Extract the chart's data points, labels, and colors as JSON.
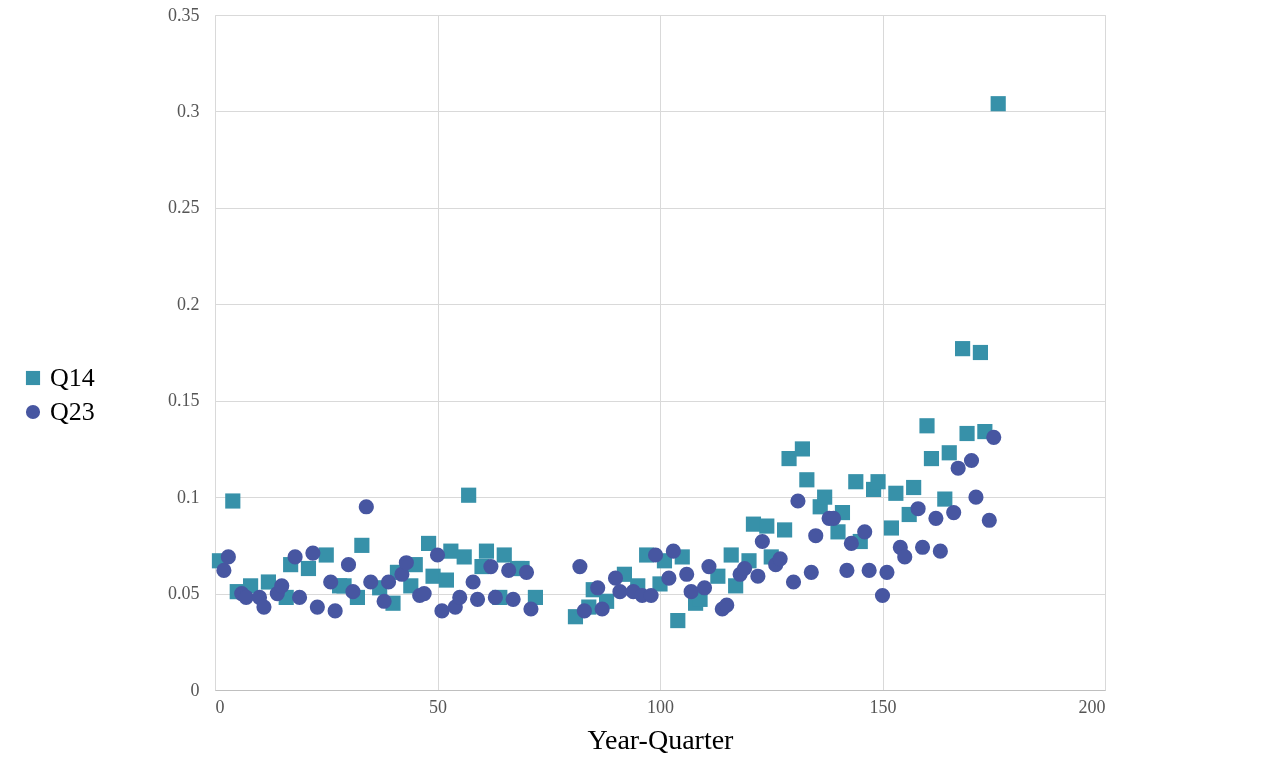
{
  "chart_data": {
    "type": "scatter",
    "xlabel": "Year-Quarter",
    "xlim": [
      0,
      200
    ],
    "xticks": [
      0,
      50,
      100,
      150,
      200
    ],
    "ylim": [
      0,
      0.35
    ],
    "yticks": [
      0,
      0.05,
      0.1,
      0.15,
      0.2,
      0.25,
      0.3,
      0.35
    ],
    "grid": true,
    "legend": "left",
    "series": [
      {
        "name": "Q14",
        "color": "#3791a9",
        "marker": "square",
        "x": [
          1,
          4,
          5,
          8,
          12,
          16,
          17,
          21,
          25,
          28,
          29,
          32,
          33,
          37,
          40,
          41,
          44,
          45,
          48,
          49,
          52,
          53,
          56,
          57,
          60,
          61,
          64,
          65,
          68,
          69,
          72,
          81,
          84,
          85,
          88,
          92,
          95,
          97,
          100,
          101,
          104,
          105,
          108,
          109,
          113,
          116,
          117,
          120,
          121,
          124,
          125,
          128,
          129,
          132,
          133,
          136,
          137,
          140,
          141,
          144,
          145,
          148,
          149,
          152,
          153,
          156,
          157,
          160,
          161,
          164,
          165,
          168,
          169,
          172,
          173,
          176
        ],
        "values": [
          0.067,
          0.098,
          0.051,
          0.054,
          0.056,
          0.048,
          0.065,
          0.063,
          0.07,
          0.054,
          0.054,
          0.048,
          0.075,
          0.053,
          0.045,
          0.061,
          0.054,
          0.065,
          0.076,
          0.059,
          0.057,
          0.072,
          0.069,
          0.101,
          0.064,
          0.072,
          0.048,
          0.07,
          0.063,
          0.063,
          0.048,
          0.038,
          0.043,
          0.052,
          0.046,
          0.06,
          0.054,
          0.07,
          0.055,
          0.067,
          0.036,
          0.069,
          0.045,
          0.047,
          0.059,
          0.07,
          0.054,
          0.067,
          0.086,
          0.085,
          0.069,
          0.083,
          0.12,
          0.125,
          0.109,
          0.095,
          0.1,
          0.082,
          0.092,
          0.108,
          0.077,
          0.104,
          0.108,
          0.084,
          0.102,
          0.091,
          0.105,
          0.137,
          0.12,
          0.099,
          0.123,
          0.177,
          0.133,
          0.175,
          0.134,
          0.304
        ]
      },
      {
        "name": "Q23",
        "color": "#4756a1",
        "marker": "circle",
        "x": [
          2,
          3,
          6,
          7,
          10,
          11,
          14,
          15,
          18,
          19,
          22,
          23,
          26,
          27,
          30,
          31,
          34,
          35,
          38,
          39,
          42,
          43,
          46,
          47,
          50,
          51,
          54,
          55,
          58,
          59,
          62,
          63,
          66,
          67,
          70,
          71,
          82,
          83,
          86,
          87,
          90,
          91,
          94,
          96,
          98,
          99,
          102,
          103,
          106,
          107,
          110,
          111,
          114,
          115,
          118,
          119,
          122,
          123,
          126,
          127,
          130,
          131,
          134,
          135,
          138,
          139,
          142,
          143,
          146,
          147,
          150,
          151,
          154,
          155,
          158,
          159,
          162,
          163,
          166,
          167,
          170,
          171,
          174,
          175
        ],
        "values": [
          0.062,
          0.069,
          0.05,
          0.048,
          0.048,
          0.043,
          0.05,
          0.054,
          0.069,
          0.048,
          0.071,
          0.043,
          0.056,
          0.041,
          0.065,
          0.051,
          0.095,
          0.056,
          0.046,
          0.056,
          0.06,
          0.066,
          0.049,
          0.05,
          0.07,
          0.041,
          0.043,
          0.048,
          0.056,
          0.047,
          0.064,
          0.048,
          0.062,
          0.047,
          0.061,
          0.042,
          0.064,
          0.041,
          0.053,
          0.042,
          0.058,
          0.051,
          0.051,
          0.049,
          0.049,
          0.07,
          0.058,
          0.072,
          0.06,
          0.051,
          0.053,
          0.064,
          0.042,
          0.044,
          0.06,
          0.063,
          0.059,
          0.077,
          0.065,
          0.068,
          0.056,
          0.098,
          0.061,
          0.08,
          0.089,
          0.089,
          0.062,
          0.076,
          0.082,
          0.062,
          0.049,
          0.061,
          0.074,
          0.069,
          0.094,
          0.074,
          0.089,
          0.072,
          0.092,
          0.115,
          0.119,
          0.1,
          0.088,
          0.131
        ]
      }
    ]
  }
}
